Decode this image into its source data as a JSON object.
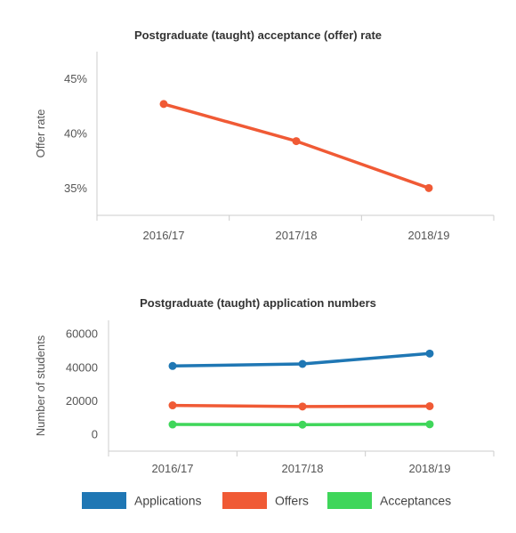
{
  "chart_data": [
    {
      "type": "line",
      "title": "Postgraduate (taught) acceptance (offer) rate",
      "ylabel": "Offer rate",
      "xlabel": "",
      "categories": [
        "2016/17",
        "2017/18",
        "2018/19"
      ],
      "y_ticks": [
        "35%",
        "40%",
        "45%"
      ],
      "y_tick_values": [
        35,
        40,
        45
      ],
      "ylim": [
        32.5,
        47.5
      ],
      "grid": false,
      "series": [
        {
          "color": "#f05a35",
          "values": [
            42.7,
            39.3,
            35.0
          ]
        }
      ]
    },
    {
      "type": "line",
      "title": "Postgraduate (taught) application numbers",
      "ylabel": "Number of students",
      "xlabel": "",
      "categories": [
        "2016/17",
        "2017/18",
        "2018/19"
      ],
      "y_ticks": [
        "0",
        "20000",
        "40000",
        "60000"
      ],
      "y_tick_values": [
        0,
        20000,
        40000,
        60000
      ],
      "ylim": [
        -10000,
        68000
      ],
      "grid": false,
      "legend_position": "bottom",
      "series": [
        {
          "name": "Applications",
          "color": "#1f77b4",
          "values": [
            40800,
            42000,
            48200
          ]
        },
        {
          "name": "Offers",
          "color": "#f05a35",
          "values": [
            17300,
            16600,
            16800
          ]
        },
        {
          "name": "Acceptances",
          "color": "#3fd65a",
          "values": [
            5900,
            5800,
            6000
          ]
        }
      ]
    }
  ]
}
